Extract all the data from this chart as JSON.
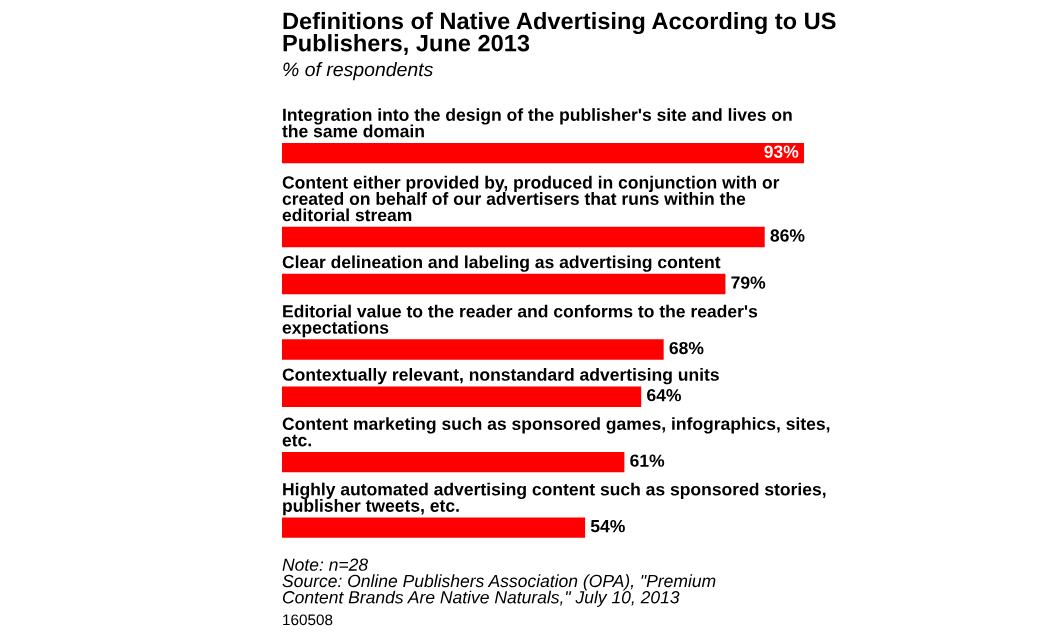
{
  "chart_data": {
    "type": "bar",
    "orientation": "horizontal",
    "title": "Definitions of Native Advertising According to US\nPublishers, June 2013",
    "subtitle": "% of respondents",
    "categories": [
      "Integration into the design of the publisher's site and lives on\nthe same domain",
      "Content either provided by, produced in conjunction with or\ncreated on behalf of our advertisers that runs within the\neditorial stream",
      "Clear delineation and labeling as advertising content",
      "Editorial value to the reader and conforms to the reader's\nexpectations",
      "Contextually relevant, nonstandard advertising units",
      "Content marketing such as sponsored games, infographics, sites,\netc.",
      "Highly automated advertising content such as sponsored stories,\npublisher tweets, etc."
    ],
    "values": [
      93,
      86,
      79,
      68,
      64,
      61,
      54
    ],
    "value_labels": [
      "93%",
      "86%",
      "79%",
      "68%",
      "64%",
      "61%",
      "54%"
    ],
    "color": "#ff0000",
    "annotations": [
      "Note: n=28\nSource: Online Publishers Association (OPA), \"Premium\nContent Brands Are Native Naturals,\" July 10, 2013",
      "160508"
    ]
  }
}
